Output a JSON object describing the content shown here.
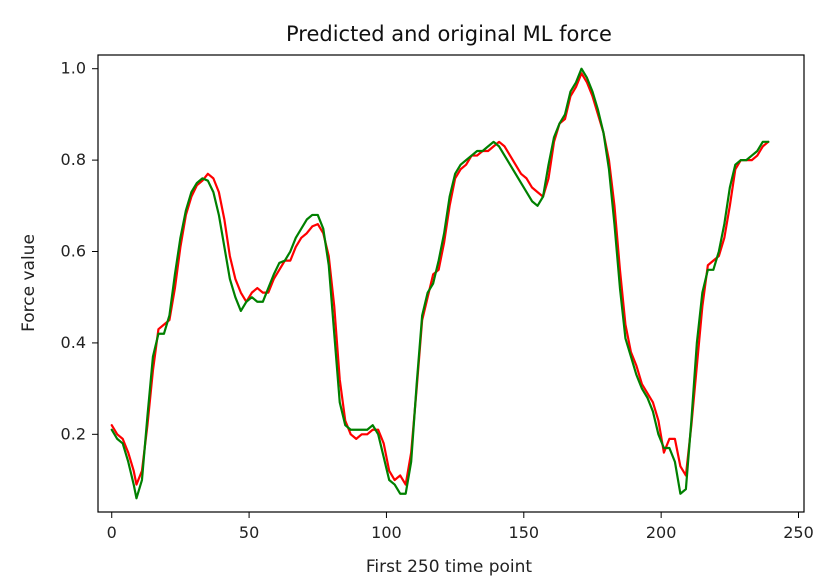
{
  "chart_data": {
    "type": "line",
    "title": "Predicted and original ML force",
    "xlabel": "First 250 time point",
    "ylabel": "Force value",
    "xlim": [
      -5,
      252
    ],
    "ylim": [
      0.03,
      1.03
    ],
    "xticks": [
      0,
      50,
      100,
      150,
      200,
      250
    ],
    "yticks": [
      0.2,
      0.4,
      0.6,
      0.8,
      1.0
    ],
    "xtick_labels": [
      "0",
      "50",
      "100",
      "150",
      "200",
      "250"
    ],
    "ytick_labels": [
      "0.2",
      "0.4",
      "0.6",
      "0.8",
      "1.0"
    ],
    "grid": false,
    "legend": false,
    "colors": {
      "frame": "#000000",
      "background": "#ffffff"
    },
    "series": [
      {
        "color": "#ff0000",
        "points": [
          [
            0,
            0.22
          ],
          [
            2,
            0.2
          ],
          [
            4,
            0.19
          ],
          [
            6,
            0.16
          ],
          [
            8,
            0.12
          ],
          [
            9,
            0.09
          ],
          [
            11,
            0.12
          ],
          [
            13,
            0.22
          ],
          [
            15,
            0.34
          ],
          [
            17,
            0.43
          ],
          [
            19,
            0.44
          ],
          [
            21,
            0.45
          ],
          [
            23,
            0.52
          ],
          [
            25,
            0.61
          ],
          [
            27,
            0.68
          ],
          [
            29,
            0.72
          ],
          [
            31,
            0.745
          ],
          [
            33,
            0.755
          ],
          [
            35,
            0.77
          ],
          [
            37,
            0.76
          ],
          [
            39,
            0.73
          ],
          [
            41,
            0.67
          ],
          [
            43,
            0.59
          ],
          [
            45,
            0.54
          ],
          [
            47,
            0.51
          ],
          [
            49,
            0.49
          ],
          [
            51,
            0.51
          ],
          [
            53,
            0.52
          ],
          [
            55,
            0.51
          ],
          [
            57,
            0.51
          ],
          [
            59,
            0.54
          ],
          [
            61,
            0.56
          ],
          [
            63,
            0.58
          ],
          [
            65,
            0.58
          ],
          [
            67,
            0.61
          ],
          [
            69,
            0.63
          ],
          [
            71,
            0.64
          ],
          [
            73,
            0.655
          ],
          [
            75,
            0.66
          ],
          [
            77,
            0.64
          ],
          [
            79,
            0.59
          ],
          [
            81,
            0.48
          ],
          [
            83,
            0.32
          ],
          [
            85,
            0.23
          ],
          [
            87,
            0.2
          ],
          [
            89,
            0.19
          ],
          [
            91,
            0.2
          ],
          [
            93,
            0.2
          ],
          [
            95,
            0.21
          ],
          [
            97,
            0.21
          ],
          [
            99,
            0.18
          ],
          [
            101,
            0.12
          ],
          [
            103,
            0.1
          ],
          [
            105,
            0.11
          ],
          [
            107,
            0.09
          ],
          [
            109,
            0.16
          ],
          [
            111,
            0.3
          ],
          [
            113,
            0.45
          ],
          [
            115,
            0.5
          ],
          [
            117,
            0.55
          ],
          [
            119,
            0.56
          ],
          [
            121,
            0.62
          ],
          [
            123,
            0.7
          ],
          [
            125,
            0.76
          ],
          [
            127,
            0.78
          ],
          [
            129,
            0.79
          ],
          [
            131,
            0.81
          ],
          [
            133,
            0.81
          ],
          [
            135,
            0.82
          ],
          [
            137,
            0.82
          ],
          [
            139,
            0.83
          ],
          [
            141,
            0.84
          ],
          [
            143,
            0.83
          ],
          [
            145,
            0.81
          ],
          [
            147,
            0.79
          ],
          [
            149,
            0.77
          ],
          [
            151,
            0.76
          ],
          [
            153,
            0.74
          ],
          [
            155,
            0.73
          ],
          [
            157,
            0.72
          ],
          [
            159,
            0.76
          ],
          [
            161,
            0.84
          ],
          [
            163,
            0.88
          ],
          [
            165,
            0.89
          ],
          [
            167,
            0.94
          ],
          [
            169,
            0.96
          ],
          [
            171,
            0.99
          ],
          [
            173,
            0.97
          ],
          [
            175,
            0.94
          ],
          [
            177,
            0.9
          ],
          [
            179,
            0.86
          ],
          [
            181,
            0.8
          ],
          [
            183,
            0.7
          ],
          [
            185,
            0.56
          ],
          [
            187,
            0.44
          ],
          [
            189,
            0.38
          ],
          [
            191,
            0.35
          ],
          [
            193,
            0.31
          ],
          [
            195,
            0.29
          ],
          [
            197,
            0.27
          ],
          [
            199,
            0.23
          ],
          [
            201,
            0.16
          ],
          [
            203,
            0.19
          ],
          [
            205,
            0.19
          ],
          [
            207,
            0.13
          ],
          [
            209,
            0.11
          ],
          [
            211,
            0.22
          ],
          [
            213,
            0.35
          ],
          [
            215,
            0.48
          ],
          [
            217,
            0.57
          ],
          [
            219,
            0.58
          ],
          [
            221,
            0.59
          ],
          [
            223,
            0.63
          ],
          [
            225,
            0.7
          ],
          [
            227,
            0.78
          ],
          [
            229,
            0.8
          ],
          [
            231,
            0.8
          ],
          [
            233,
            0.8
          ],
          [
            235,
            0.81
          ],
          [
            237,
            0.83
          ],
          [
            239,
            0.84
          ]
        ]
      },
      {
        "color": "#008000",
        "points": [
          [
            0,
            0.21
          ],
          [
            2,
            0.19
          ],
          [
            4,
            0.18
          ],
          [
            6,
            0.14
          ],
          [
            8,
            0.09
          ],
          [
            9,
            0.06
          ],
          [
            11,
            0.1
          ],
          [
            13,
            0.24
          ],
          [
            15,
            0.37
          ],
          [
            17,
            0.42
          ],
          [
            19,
            0.42
          ],
          [
            21,
            0.46
          ],
          [
            23,
            0.55
          ],
          [
            25,
            0.63
          ],
          [
            27,
            0.69
          ],
          [
            29,
            0.73
          ],
          [
            31,
            0.75
          ],
          [
            33,
            0.76
          ],
          [
            35,
            0.755
          ],
          [
            37,
            0.73
          ],
          [
            39,
            0.68
          ],
          [
            41,
            0.61
          ],
          [
            43,
            0.54
          ],
          [
            45,
            0.5
          ],
          [
            47,
            0.47
          ],
          [
            49,
            0.49
          ],
          [
            51,
            0.5
          ],
          [
            53,
            0.49
          ],
          [
            55,
            0.49
          ],
          [
            57,
            0.52
          ],
          [
            59,
            0.55
          ],
          [
            61,
            0.575
          ],
          [
            63,
            0.58
          ],
          [
            65,
            0.6
          ],
          [
            67,
            0.63
          ],
          [
            69,
            0.65
          ],
          [
            71,
            0.67
          ],
          [
            73,
            0.68
          ],
          [
            75,
            0.68
          ],
          [
            77,
            0.65
          ],
          [
            79,
            0.57
          ],
          [
            81,
            0.42
          ],
          [
            83,
            0.27
          ],
          [
            85,
            0.22
          ],
          [
            87,
            0.21
          ],
          [
            89,
            0.21
          ],
          [
            91,
            0.21
          ],
          [
            93,
            0.21
          ],
          [
            95,
            0.22
          ],
          [
            97,
            0.2
          ],
          [
            99,
            0.15
          ],
          [
            101,
            0.1
          ],
          [
            103,
            0.09
          ],
          [
            105,
            0.07
          ],
          [
            107,
            0.07
          ],
          [
            109,
            0.14
          ],
          [
            111,
            0.31
          ],
          [
            113,
            0.46
          ],
          [
            115,
            0.51
          ],
          [
            117,
            0.53
          ],
          [
            119,
            0.58
          ],
          [
            121,
            0.64
          ],
          [
            123,
            0.72
          ],
          [
            125,
            0.77
          ],
          [
            127,
            0.79
          ],
          [
            129,
            0.8
          ],
          [
            131,
            0.81
          ],
          [
            133,
            0.82
          ],
          [
            135,
            0.82
          ],
          [
            137,
            0.83
          ],
          [
            139,
            0.84
          ],
          [
            141,
            0.83
          ],
          [
            143,
            0.81
          ],
          [
            145,
            0.79
          ],
          [
            147,
            0.77
          ],
          [
            149,
            0.75
          ],
          [
            151,
            0.73
          ],
          [
            153,
            0.71
          ],
          [
            155,
            0.7
          ],
          [
            157,
            0.72
          ],
          [
            159,
            0.79
          ],
          [
            161,
            0.85
          ],
          [
            163,
            0.88
          ],
          [
            165,
            0.9
          ],
          [
            167,
            0.95
          ],
          [
            169,
            0.97
          ],
          [
            171,
            1.0
          ],
          [
            173,
            0.98
          ],
          [
            175,
            0.95
          ],
          [
            177,
            0.91
          ],
          [
            179,
            0.86
          ],
          [
            181,
            0.78
          ],
          [
            183,
            0.66
          ],
          [
            185,
            0.52
          ],
          [
            187,
            0.41
          ],
          [
            189,
            0.37
          ],
          [
            191,
            0.33
          ],
          [
            193,
            0.3
          ],
          [
            195,
            0.28
          ],
          [
            197,
            0.25
          ],
          [
            199,
            0.2
          ],
          [
            201,
            0.17
          ],
          [
            203,
            0.17
          ],
          [
            205,
            0.14
          ],
          [
            207,
            0.07
          ],
          [
            209,
            0.08
          ],
          [
            211,
            0.23
          ],
          [
            213,
            0.4
          ],
          [
            215,
            0.51
          ],
          [
            217,
            0.56
          ],
          [
            219,
            0.56
          ],
          [
            221,
            0.6
          ],
          [
            223,
            0.66
          ],
          [
            225,
            0.74
          ],
          [
            227,
            0.79
          ],
          [
            229,
            0.8
          ],
          [
            231,
            0.8
          ],
          [
            233,
            0.81
          ],
          [
            235,
            0.82
          ],
          [
            237,
            0.84
          ],
          [
            239,
            0.84
          ]
        ]
      }
    ]
  }
}
